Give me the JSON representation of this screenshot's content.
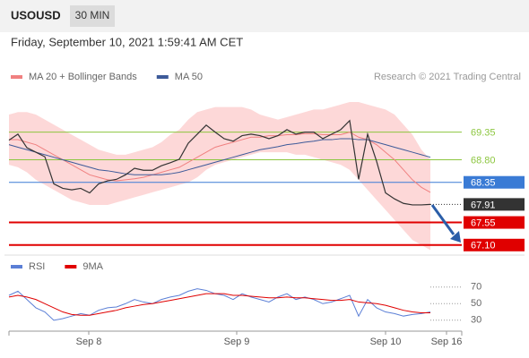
{
  "header": {
    "symbol": "USOUSD",
    "timeframe": "30 MIN",
    "timestamp": "Friday, September 10, 2021 1:59:41 AM CET",
    "credit": "Research © 2021 Trading Central"
  },
  "chart_data": [
    {
      "type": "line",
      "color": "#333333",
      "values": [
        69.19,
        69.31,
        69.04,
        68.95,
        68.86,
        68.32,
        68.23,
        68.2,
        68.23,
        68.14,
        68.32,
        68.38,
        68.41,
        68.5,
        68.63,
        68.59,
        68.59,
        68.68,
        68.74,
        68.81,
        69.13,
        69.31,
        69.49,
        69.35,
        69.22,
        69.17,
        69.28,
        69.31,
        69.28,
        69.22,
        69.28,
        69.4,
        69.31,
        69.35,
        69.35,
        69.22,
        69.31,
        69.4,
        69.58,
        68.41,
        69.31,
        68.77,
        68.14,
        68.02,
        67.93,
        67.9,
        67.9,
        67.91
      ],
      "series": [
        {
          "name": "MA 20 + Bollinger Bands",
          "color": "#f08080",
          "band_color": "#fdd8d8",
          "values": [
            69.2,
            69.2,
            69.15,
            69.1,
            69.0,
            68.9,
            68.8,
            68.7,
            68.6,
            68.5,
            68.45,
            68.4,
            68.38,
            68.4,
            68.42,
            68.45,
            68.5,
            68.55,
            68.6,
            68.65,
            68.75,
            68.85,
            68.95,
            69.05,
            69.1,
            69.15,
            69.2,
            69.25,
            69.25,
            69.28,
            69.28,
            69.3,
            69.3,
            69.32,
            69.32,
            69.3,
            69.3,
            69.3,
            69.35,
            69.25,
            69.2,
            69.1,
            68.95,
            68.8,
            68.6,
            68.4,
            68.25,
            68.15
          ],
          "band_upper": [
            69.7,
            69.75,
            69.75,
            69.7,
            69.6,
            69.5,
            69.4,
            69.3,
            69.2,
            69.1,
            69.0,
            68.95,
            68.9,
            68.9,
            68.95,
            69.0,
            69.05,
            69.15,
            69.3,
            69.4,
            69.6,
            69.75,
            69.8,
            69.85,
            69.85,
            69.85,
            69.85,
            69.8,
            69.7,
            69.65,
            69.6,
            69.65,
            69.7,
            69.75,
            69.8,
            69.8,
            69.85,
            69.9,
            69.95,
            69.95,
            69.9,
            69.85,
            69.8,
            69.7,
            69.5,
            69.3,
            69.0,
            68.8
          ],
          "band_lower": [
            68.7,
            68.65,
            68.55,
            68.4,
            68.3,
            68.2,
            68.1,
            68.0,
            67.95,
            67.9,
            67.9,
            67.9,
            67.95,
            68.0,
            68.05,
            68.1,
            68.15,
            68.2,
            68.25,
            68.3,
            68.35,
            68.45,
            68.6,
            68.7,
            68.75,
            68.8,
            68.85,
            68.9,
            68.95,
            68.95,
            68.95,
            68.95,
            68.9,
            68.9,
            68.85,
            68.8,
            68.75,
            68.7,
            68.6,
            68.4,
            68.2,
            68.0,
            67.8,
            67.6,
            67.4,
            67.2,
            67.1,
            67.0
          ]
        },
        {
          "name": "MA 50",
          "color": "#3d5a99",
          "values": [
            69.1,
            69.05,
            69.0,
            68.95,
            68.9,
            68.85,
            68.8,
            68.75,
            68.7,
            68.65,
            68.6,
            68.58,
            68.55,
            68.52,
            68.5,
            68.5,
            68.5,
            68.5,
            68.52,
            68.55,
            68.6,
            68.65,
            68.7,
            68.75,
            68.8,
            68.85,
            68.9,
            68.95,
            69.0,
            69.03,
            69.06,
            69.1,
            69.12,
            69.15,
            69.17,
            69.2,
            69.2,
            69.22,
            69.22,
            69.2,
            69.2,
            69.15,
            69.1,
            69.05,
            69.0,
            68.95,
            68.9,
            68.85
          ]
        }
      ],
      "levels": [
        {
          "value": 69.35,
          "color": "#8cc63f",
          "boxed": false
        },
        {
          "value": 68.8,
          "label": "68.80",
          "color": "#8cc63f",
          "boxed": false
        },
        {
          "value": 68.35,
          "color": "#3a7bd5",
          "boxed": true
        },
        {
          "value": 67.91,
          "color": "#333333",
          "boxed": true
        },
        {
          "value": 67.55,
          "color": "#e00000",
          "boxed": true
        },
        {
          "value": 67.1,
          "label": "67.10",
          "color": "#e00000",
          "boxed": true
        }
      ],
      "ylim": [
        66.9,
        70.2
      ],
      "xlim": [
        0,
        50.5
      ]
    },
    {
      "type": "line",
      "series": [
        {
          "name": "RSI",
          "color": "#5b7fd6",
          "values": [
            60,
            65,
            55,
            45,
            40,
            30,
            32,
            35,
            38,
            36,
            42,
            45,
            46,
            50,
            55,
            52,
            50,
            55,
            58,
            60,
            65,
            68,
            66,
            62,
            60,
            55,
            62,
            58,
            55,
            52,
            58,
            62,
            55,
            58,
            55,
            50,
            52,
            56,
            60,
            35,
            55,
            45,
            40,
            38,
            35,
            37,
            38,
            40
          ]
        },
        {
          "name": "9MA",
          "color": "#e00000",
          "values": [
            58,
            60,
            58,
            55,
            50,
            45,
            40,
            37,
            36,
            36,
            38,
            40,
            42,
            45,
            47,
            49,
            50,
            52,
            54,
            56,
            58,
            60,
            62,
            62,
            62,
            60,
            60,
            59,
            58,
            57,
            57,
            58,
            57,
            57,
            56,
            55,
            54,
            54,
            55,
            52,
            51,
            50,
            48,
            45,
            42,
            40,
            39,
            39
          ]
        }
      ],
      "ylim": [
        19,
        87
      ],
      "yticks": [
        70,
        50,
        30
      ],
      "xlim": [
        0,
        50.5
      ],
      "xticks": [
        {
          "value": 8.9,
          "label": "Sep 8"
        },
        {
          "value": 25.4,
          "label": "Sep 9"
        },
        {
          "value": 42,
          "label": "Sep 10"
        },
        {
          "value": 48.8,
          "label": "Sep 16"
        }
      ]
    }
  ]
}
